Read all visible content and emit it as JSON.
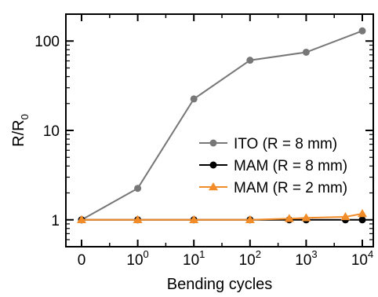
{
  "chart_data": {
    "type": "line",
    "xlabel": "Bending cycles",
    "ylabel_main": "R/R",
    "ylabel_sub": "0",
    "yscale": "log",
    "ylim": [
      0.5,
      200
    ],
    "x_ticks": [
      {
        "base": "0",
        "exp": ""
      },
      {
        "base": "10",
        "exp": "0"
      },
      {
        "base": "10",
        "exp": "1"
      },
      {
        "base": "10",
        "exp": "2"
      },
      {
        "base": "10",
        "exp": "3"
      },
      {
        "base": "10",
        "exp": "4"
      }
    ],
    "y_ticks": [
      {
        "value": 1,
        "label": "1"
      },
      {
        "value": 10,
        "label": "10"
      },
      {
        "value": 100,
        "label": "100"
      }
    ],
    "legend_position": "right-center",
    "series": [
      {
        "name": "ITO (R = 8 mm)",
        "color": "#777777",
        "marker": "circle",
        "points": [
          {
            "x": 0,
            "y": 1.0
          },
          {
            "x": 1,
            "y": 2.25
          },
          {
            "x": 10,
            "y": 22.5
          },
          {
            "x": 100,
            "y": 61
          },
          {
            "x": 1000,
            "y": 75
          },
          {
            "x": 10000,
            "y": 130
          }
        ]
      },
      {
        "name": "MAM (R = 8 mm)",
        "color": "#000000",
        "marker": "circle",
        "points": [
          {
            "x": 0,
            "y": 1.0
          },
          {
            "x": 1,
            "y": 1.0
          },
          {
            "x": 10,
            "y": 1.0
          },
          {
            "x": 100,
            "y": 1.0
          },
          {
            "x": 500,
            "y": 1.0
          },
          {
            "x": 1000,
            "y": 1.0
          },
          {
            "x": 5000,
            "y": 1.0
          },
          {
            "x": 10000,
            "y": 1.0
          }
        ]
      },
      {
        "name": "MAM (R = 2 mm)",
        "color": "#f28c28",
        "marker": "triangle",
        "points": [
          {
            "x": 0,
            "y": 1.0
          },
          {
            "x": 1,
            "y": 1.0
          },
          {
            "x": 10,
            "y": 1.0
          },
          {
            "x": 100,
            "y": 1.0
          },
          {
            "x": 500,
            "y": 1.03
          },
          {
            "x": 1000,
            "y": 1.05
          },
          {
            "x": 5000,
            "y": 1.08
          },
          {
            "x": 10000,
            "y": 1.17
          }
        ]
      }
    ]
  }
}
